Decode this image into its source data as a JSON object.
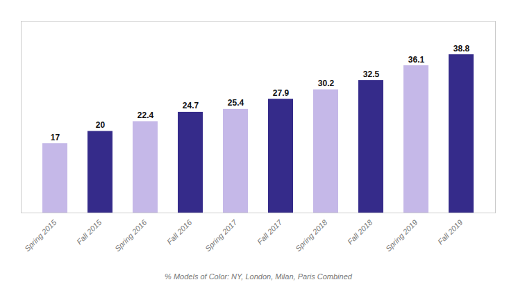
{
  "chart_data": {
    "type": "bar",
    "xlabel": "% Models of Color: NY, London, Milan, Paris Combined",
    "categories": [
      "Spring 2015",
      "Fall 2015",
      "Spring 2016",
      "Fall 2016",
      "Spring 2017",
      "Fall 2017",
      "Spring 2018",
      "Fall 2018",
      "Spring 2019",
      "Fall 2019"
    ],
    "values": [
      17,
      20,
      22.4,
      24.7,
      25.4,
      27.9,
      30.2,
      32.5,
      36.1,
      38.8
    ],
    "colors": [
      "#c5b8e8",
      "#352b8a",
      "#c5b8e8",
      "#352b8a",
      "#c5b8e8",
      "#352b8a",
      "#c5b8e8",
      "#352b8a",
      "#c5b8e8",
      "#352b8a"
    ],
    "ylim": [
      0,
      47
    ],
    "data_labels": true,
    "tick_labels": "x"
  }
}
